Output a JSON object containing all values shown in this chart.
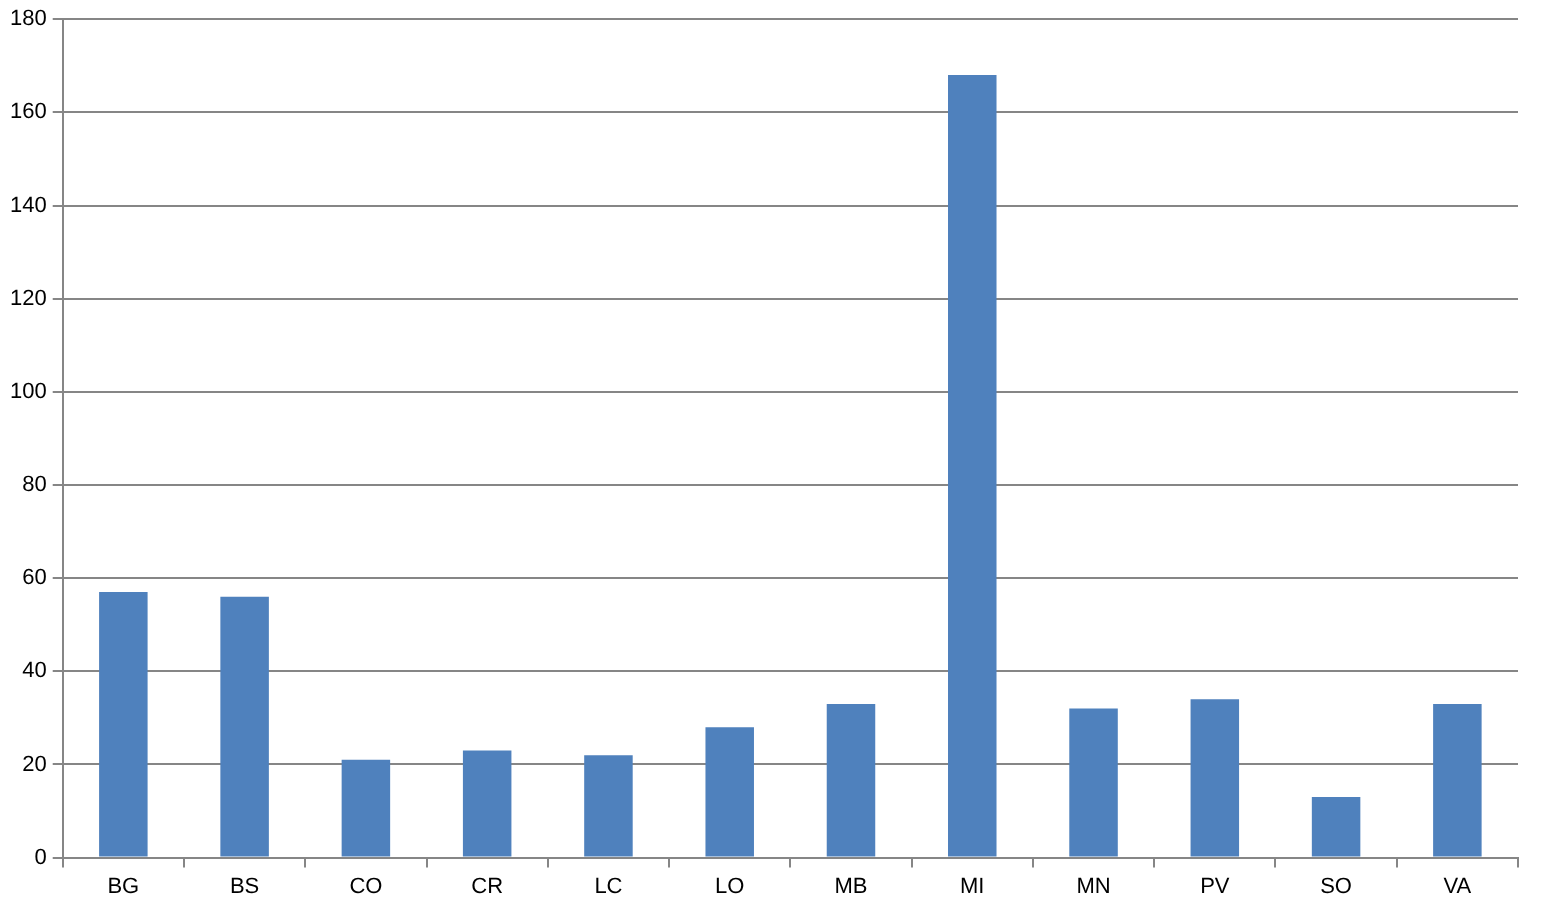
{
  "chart_data": {
    "type": "bar",
    "categories": [
      "BG",
      "BS",
      "CO",
      "CR",
      "LC",
      "LO",
      "MB",
      "MI",
      "MN",
      "PV",
      "SO",
      "VA"
    ],
    "values": [
      57,
      56,
      21,
      23,
      22,
      28,
      33,
      168,
      32,
      34,
      13,
      33
    ],
    "color": "#4f81bd",
    "ylim": [
      0,
      180
    ],
    "yticks": [
      0,
      20,
      40,
      60,
      80,
      100,
      120,
      140,
      160,
      180
    ],
    "grid": "y"
  }
}
